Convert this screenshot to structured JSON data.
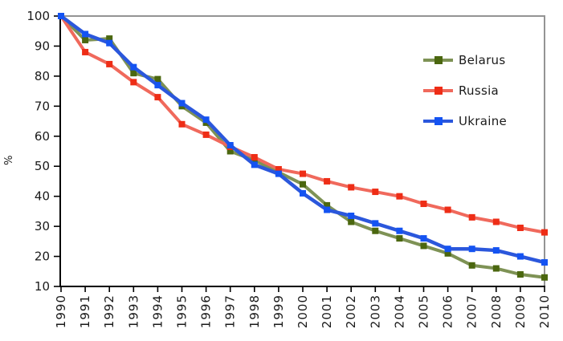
{
  "y_axis_title": "%",
  "axis_color": "#000000",
  "frame_color": "#949494",
  "tick_label_color": "#1a1a1a",
  "chart_data": {
    "type": "line",
    "title": "",
    "xlabel": "",
    "ylabel": "%",
    "x": [
      1990,
      1991,
      1992,
      1993,
      1994,
      1995,
      1996,
      1997,
      1998,
      1999,
      2000,
      2001,
      2002,
      2003,
      2004,
      2005,
      2006,
      2007,
      2008,
      2009,
      2010
    ],
    "ylim": [
      10,
      100
    ],
    "yticks": [
      10,
      20,
      30,
      40,
      50,
      60,
      70,
      80,
      90,
      100
    ],
    "grid": false,
    "legend_position": "upper right inside plot",
    "series": [
      {
        "name": "Belarus",
        "line_color": "#7e9255",
        "marker_color": "#4b670f",
        "line_width": 4,
        "values": [
          100,
          92,
          92.5,
          81,
          79,
          70,
          64.5,
          55,
          52,
          48,
          44,
          37,
          31.5,
          28.5,
          26,
          23.5,
          21,
          17,
          16,
          14,
          13
        ]
      },
      {
        "name": "Russia",
        "line_color": "#f0695c",
        "marker_color": "#ee2d16",
        "line_width": 4,
        "values": [
          100,
          88,
          84,
          78,
          73,
          64,
          60.5,
          56.5,
          53,
          49,
          47.5,
          45,
          43,
          41.5,
          40,
          37.5,
          35.5,
          33,
          31.5,
          29.5,
          28
        ]
      },
      {
        "name": "Ukraine",
        "line_color": "#2b57dc",
        "marker_color": "#1453f2",
        "line_width": 4.5,
        "values": [
          100,
          94,
          91,
          83,
          77,
          71,
          65.5,
          57,
          50.5,
          47.5,
          41,
          35.5,
          33.5,
          31,
          28.5,
          26,
          22.5,
          22.5,
          22,
          20,
          18
        ]
      }
    ]
  }
}
